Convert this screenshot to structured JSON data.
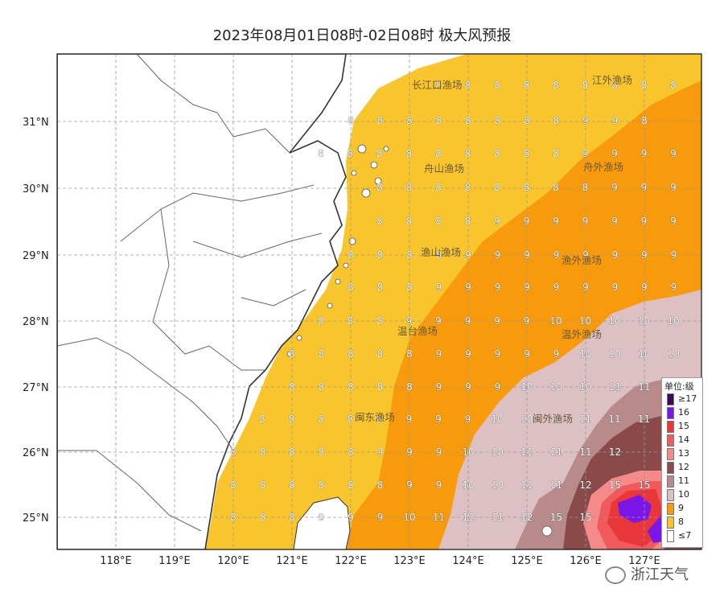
{
  "title": "2023年08月01日08时-02日08时 极大风预报",
  "axes": {
    "lat_labels": [
      "31°N",
      "30°N",
      "29°N",
      "28°N",
      "27°N",
      "26°N",
      "25°N"
    ],
    "lon_labels": [
      "118°E",
      "119°E",
      "120°E",
      "121°E",
      "122°E",
      "123°E",
      "124°E",
      "125°E",
      "126°E",
      "127°E"
    ]
  },
  "fishing_grounds": [
    {
      "name": "长江口渔场"
    },
    {
      "name": "江外渔场"
    },
    {
      "name": "舟山渔场"
    },
    {
      "name": "舟外渔场"
    },
    {
      "name": "渔山渔场"
    },
    {
      "name": "渔外渔场"
    },
    {
      "name": "温台渔场"
    },
    {
      "name": "温外渔场"
    },
    {
      "name": "闽东渔场"
    },
    {
      "name": "闽外渔场"
    }
  ],
  "legend": {
    "title": "单位:级",
    "items": [
      {
        "label": "≥17",
        "color": "#3a0a5c"
      },
      {
        "label": "16",
        "color": "#7b16e8"
      },
      {
        "label": "15",
        "color": "#e8363a"
      },
      {
        "label": "14",
        "color": "#f05a5a"
      },
      {
        "label": "13",
        "color": "#f58a8a"
      },
      {
        "label": "12",
        "color": "#8b4a4a"
      },
      {
        "label": "11",
        "color": "#b88a8a"
      },
      {
        "label": "10",
        "color": "#dcc0c4"
      },
      {
        "label": "9",
        "color": "#f79a0c"
      },
      {
        "label": "8",
        "color": "#f9c52c"
      },
      {
        "label": "≤7",
        "color": "#ffffff"
      }
    ]
  },
  "grid_rows": [
    [
      "8",
      "8",
      "8",
      "8",
      "8",
      "8",
      "8",
      "8",
      "8"
    ],
    [
      "8",
      "8",
      "8",
      "8",
      "8",
      "8",
      "8",
      "8",
      "9",
      "9",
      "8"
    ],
    [
      "8",
      "8",
      "8",
      "8",
      "8",
      "8",
      "8",
      "8",
      "8",
      "9",
      "9",
      "9",
      "9"
    ],
    [
      "8",
      "8",
      "8",
      "8",
      "8",
      "8",
      "8",
      "8",
      "9",
      "9",
      "9",
      "9"
    ],
    [
      "8",
      "8",
      "8",
      "8",
      "9",
      "9",
      "9",
      "9",
      "9",
      "9",
      "9",
      "9"
    ],
    [
      "8",
      "8",
      "8",
      "8",
      "9",
      "9",
      "9",
      "9",
      "9",
      "9",
      "9",
      "9"
    ],
    [
      "8",
      "8",
      "8",
      "9",
      "9",
      "9",
      "9",
      "9",
      "9",
      "9",
      "9",
      "9"
    ],
    [
      "8",
      "8",
      "8",
      "9",
      "9",
      "9",
      "9",
      "9",
      "10",
      "10",
      "10",
      "10",
      "10"
    ],
    [
      "8",
      "8",
      "8",
      "8",
      "8",
      "9",
      "9",
      "9",
      "9",
      "9",
      "10",
      "10",
      "10",
      "10"
    ],
    [
      "8",
      "8",
      "8",
      "8",
      "8",
      "9",
      "9",
      "9",
      "10",
      "10",
      "10",
      "11",
      "11",
      "11"
    ],
    [
      "8",
      "8",
      "8",
      "8",
      "8",
      "9",
      "9",
      "9",
      "10",
      "10",
      "10",
      "11",
      "11",
      "11"
    ],
    [
      "8",
      "8",
      "8",
      "8",
      "8",
      "9",
      "9",
      "9",
      "10",
      "10",
      "11",
      "11",
      "11",
      "12"
    ],
    [
      "8",
      "8",
      "8",
      "8",
      "8",
      "8",
      "9",
      "9",
      "10",
      "10",
      "11",
      "11",
      "12",
      "15",
      "15"
    ],
    [
      "8",
      "8",
      "8",
      "9",
      "9",
      "9",
      "10",
      "11",
      "11",
      "11",
      "12",
      "15",
      "15"
    ]
  ],
  "watermark": "浙江天气"
}
